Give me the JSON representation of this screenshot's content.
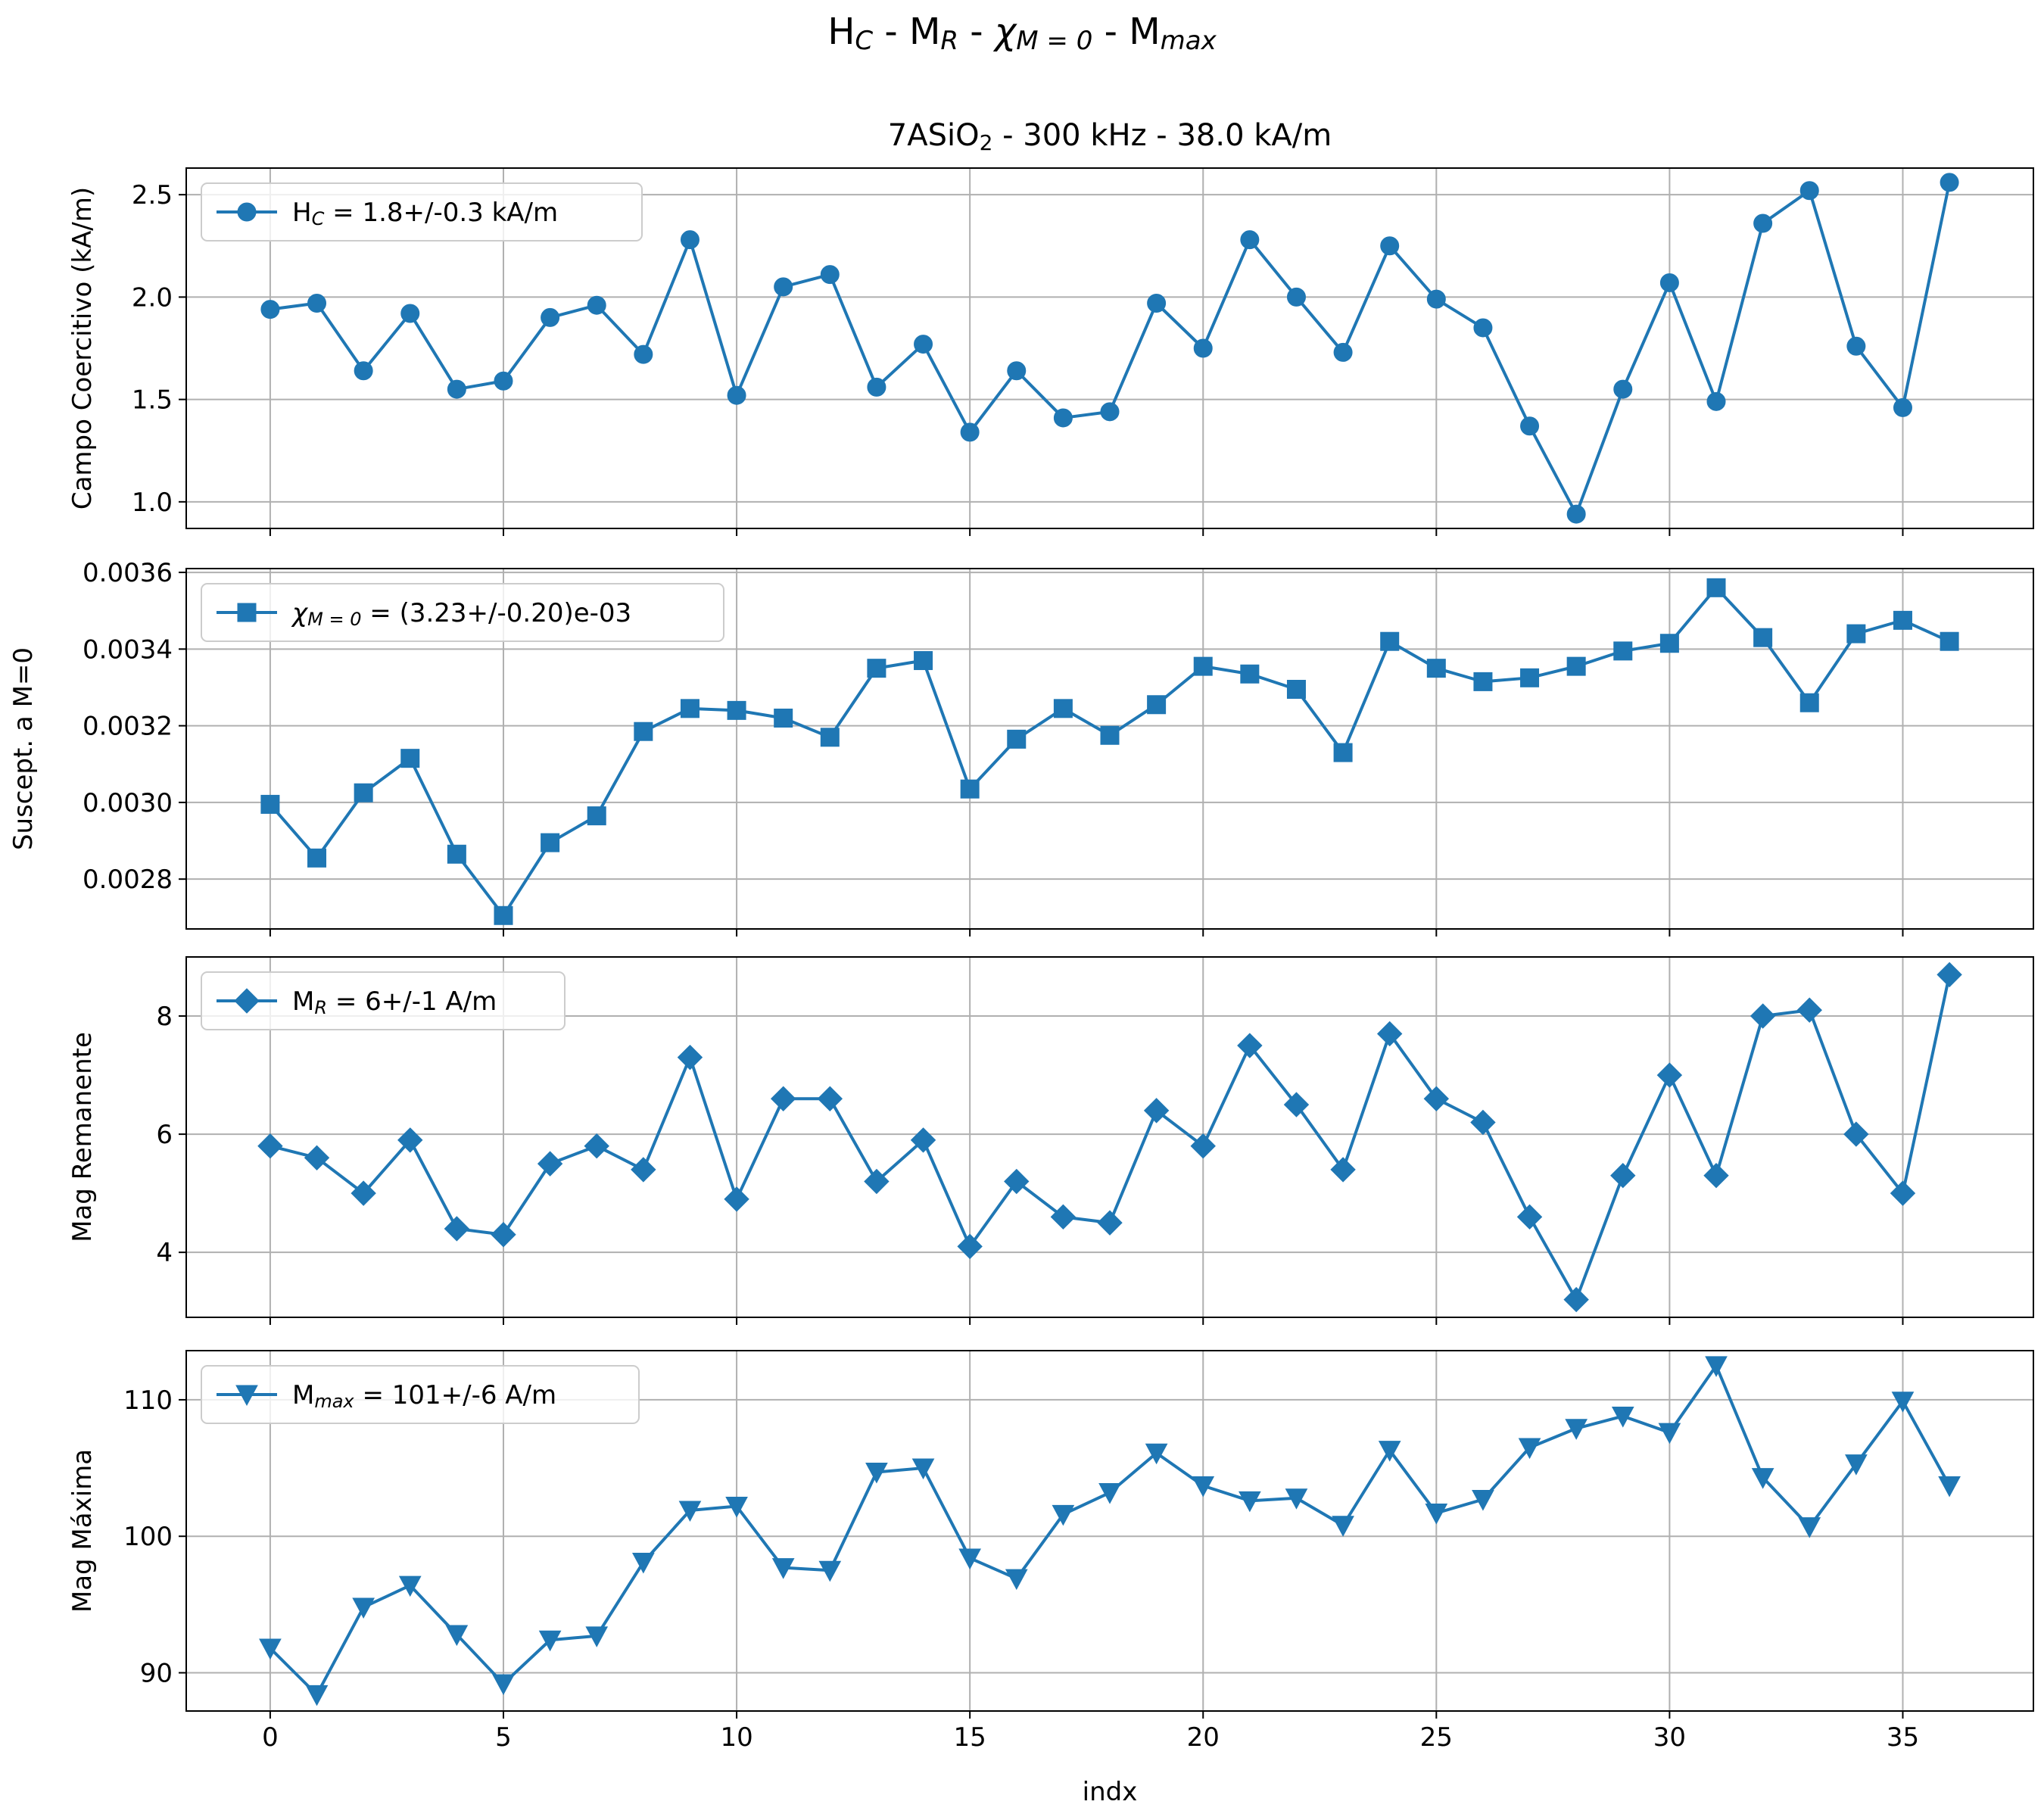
{
  "figure": {
    "suptitle_parts": [
      {
        "text": "H",
        "style": "normal"
      },
      {
        "text": "C",
        "style": "sub"
      },
      {
        "text": " - M",
        "style": "normal"
      },
      {
        "text": "R",
        "style": "sub"
      },
      {
        "text": " - ",
        "style": "normal"
      },
      {
        "text": "χ",
        "style": "italic"
      },
      {
        "text": "M = 0",
        "style": "sub"
      },
      {
        "text": " - M",
        "style": "normal"
      },
      {
        "text": "max",
        "style": "sub"
      }
    ],
    "title_parts": [
      {
        "text": "7ASiO",
        "style": "normal"
      },
      {
        "text": "2",
        "style": "sub-upright"
      },
      {
        "text": " - 300 kHz - 38.0 kA/m",
        "style": "normal"
      }
    ],
    "xlabel": "indx",
    "line_color": "#1f77b4",
    "grid_color": "#b0b0b0"
  },
  "chart_data": [
    {
      "type": "line",
      "marker": "circle",
      "ylabel": "Campo Coercitivo (kA/m)",
      "xlim": [
        -1.8,
        37.8
      ],
      "ylim": [
        0.87,
        2.63
      ],
      "xticks": [
        0,
        5,
        10,
        15,
        20,
        25,
        30,
        35
      ],
      "xticklabels": [
        "0",
        "5",
        "10",
        "15",
        "20",
        "25",
        "30",
        "35"
      ],
      "yticks": [
        1.0,
        1.5,
        2.0,
        2.5
      ],
      "yticklabels": [
        "1.0",
        "1.5",
        "2.0",
        "2.5"
      ],
      "grid": true,
      "legend_position": "upper-left",
      "legend_parts": [
        {
          "text": "H",
          "style": "normal"
        },
        {
          "text": "C",
          "style": "sub"
        },
        {
          "text": " = 1.8+/-0.3 kA/m",
          "style": "normal"
        }
      ],
      "x": [
        0,
        1,
        2,
        3,
        4,
        5,
        6,
        7,
        8,
        9,
        10,
        11,
        12,
        13,
        14,
        15,
        16,
        17,
        18,
        19,
        20,
        21,
        22,
        23,
        24,
        25,
        26,
        27,
        28,
        29,
        30,
        31,
        32,
        33,
        34,
        35,
        36
      ],
      "values": [
        1.94,
        1.97,
        1.64,
        1.92,
        1.55,
        1.59,
        1.9,
        1.96,
        1.72,
        2.28,
        1.52,
        2.05,
        2.11,
        1.56,
        1.77,
        1.34,
        1.64,
        1.41,
        1.44,
        1.97,
        1.75,
        2.28,
        2.0,
        1.73,
        2.25,
        1.99,
        1.85,
        1.37,
        0.94,
        1.55,
        2.07,
        1.49,
        2.36,
        2.52,
        1.76,
        1.46,
        2.56
      ]
    },
    {
      "type": "line",
      "marker": "square",
      "ylabel": "Suscept. a M=0",
      "xlim": [
        -1.8,
        37.8
      ],
      "ylim": [
        0.00267,
        0.00361
      ],
      "xticks": [
        0,
        5,
        10,
        15,
        20,
        25,
        30,
        35
      ],
      "xticklabels": [
        "0",
        "5",
        "10",
        "15",
        "20",
        "25",
        "30",
        "35"
      ],
      "yticks": [
        0.0028,
        0.003,
        0.0032,
        0.0034,
        0.0036
      ],
      "yticklabels": [
        "0.0028",
        "0.0030",
        "0.0032",
        "0.0034",
        "0.0036"
      ],
      "grid": true,
      "legend_position": "upper-left",
      "legend_parts": [
        {
          "text": "χ",
          "style": "italic"
        },
        {
          "text": "M = 0",
          "style": "sub"
        },
        {
          "text": " = (3.23+/-0.20)e-03",
          "style": "normal"
        }
      ],
      "x": [
        0,
        1,
        2,
        3,
        4,
        5,
        6,
        7,
        8,
        9,
        10,
        11,
        12,
        13,
        14,
        15,
        16,
        17,
        18,
        19,
        20,
        21,
        22,
        23,
        24,
        25,
        26,
        27,
        28,
        29,
        30,
        31,
        32,
        33,
        34,
        35,
        36
      ],
      "values": [
        0.002995,
        0.002855,
        0.003025,
        0.003115,
        0.002865,
        0.002705,
        0.002895,
        0.002965,
        0.003185,
        0.003245,
        0.00324,
        0.00322,
        0.00317,
        0.00335,
        0.00337,
        0.003035,
        0.003165,
        0.003245,
        0.003175,
        0.003255,
        0.003355,
        0.003335,
        0.003295,
        0.00313,
        0.00342,
        0.00335,
        0.003315,
        0.003325,
        0.003355,
        0.003395,
        0.003415,
        0.00356,
        0.00343,
        0.00326,
        0.00344,
        0.003475,
        0.00342
      ]
    },
    {
      "type": "line",
      "marker": "diamond",
      "ylabel": "Mag Remanente",
      "xlim": [
        -1.8,
        37.8
      ],
      "ylim": [
        2.9,
        9.0
      ],
      "xticks": [
        0,
        5,
        10,
        15,
        20,
        25,
        30,
        35
      ],
      "xticklabels": [
        "0",
        "5",
        "10",
        "15",
        "20",
        "25",
        "30",
        "35"
      ],
      "yticks": [
        4,
        6,
        8
      ],
      "yticklabels": [
        "4",
        "6",
        "8"
      ],
      "grid": true,
      "legend_position": "upper-left",
      "legend_parts": [
        {
          "text": "M",
          "style": "normal"
        },
        {
          "text": "R",
          "style": "sub"
        },
        {
          "text": " = 6+/-1 A/m",
          "style": "normal"
        }
      ],
      "x": [
        0,
        1,
        2,
        3,
        4,
        5,
        6,
        7,
        8,
        9,
        10,
        11,
        12,
        13,
        14,
        15,
        16,
        17,
        18,
        19,
        20,
        21,
        22,
        23,
        24,
        25,
        26,
        27,
        28,
        29,
        30,
        31,
        32,
        33,
        34,
        35,
        36
      ],
      "values": [
        5.8,
        5.6,
        5.0,
        5.9,
        4.4,
        4.3,
        5.5,
        5.8,
        5.4,
        7.3,
        4.9,
        6.6,
        6.6,
        5.2,
        5.9,
        4.1,
        5.2,
        4.6,
        4.5,
        6.4,
        5.8,
        7.5,
        6.5,
        5.4,
        7.7,
        6.6,
        6.2,
        4.6,
        3.2,
        5.3,
        7.0,
        5.3,
        8.0,
        8.1,
        6.0,
        5.0,
        8.7
      ]
    },
    {
      "type": "line",
      "marker": "triangle-down",
      "ylabel": "Mag Máxima",
      "xlim": [
        -1.8,
        37.8
      ],
      "ylim": [
        87.2,
        113.6
      ],
      "xticks": [
        0,
        5,
        10,
        15,
        20,
        25,
        30,
        35
      ],
      "xticklabels": [
        "0",
        "5",
        "10",
        "15",
        "20",
        "25",
        "30",
        "35"
      ],
      "yticks": [
        90,
        100,
        110
      ],
      "yticklabels": [
        "90",
        "100",
        "110"
      ],
      "grid": true,
      "legend_position": "upper-left",
      "legend_parts": [
        {
          "text": "M",
          "style": "normal"
        },
        {
          "text": "max",
          "style": "sub"
        },
        {
          "text": " = 101+/-6 A/m",
          "style": "normal"
        }
      ],
      "x": [
        0,
        1,
        2,
        3,
        4,
        5,
        6,
        7,
        8,
        9,
        10,
        11,
        12,
        13,
        14,
        15,
        16,
        17,
        18,
        19,
        20,
        21,
        22,
        23,
        24,
        25,
        26,
        27,
        28,
        29,
        30,
        31,
        32,
        33,
        34,
        35,
        36
      ],
      "values": [
        91.8,
        88.4,
        94.8,
        96.4,
        92.8,
        89.2,
        92.4,
        92.7,
        98.1,
        101.9,
        102.2,
        97.7,
        97.5,
        104.7,
        105.0,
        98.4,
        96.9,
        101.6,
        103.2,
        106.1,
        103.7,
        102.6,
        102.8,
        100.8,
        106.3,
        101.7,
        102.7,
        106.5,
        107.9,
        108.8,
        107.6,
        112.5,
        104.3,
        100.7,
        105.3,
        109.9,
        103.7
      ]
    }
  ]
}
